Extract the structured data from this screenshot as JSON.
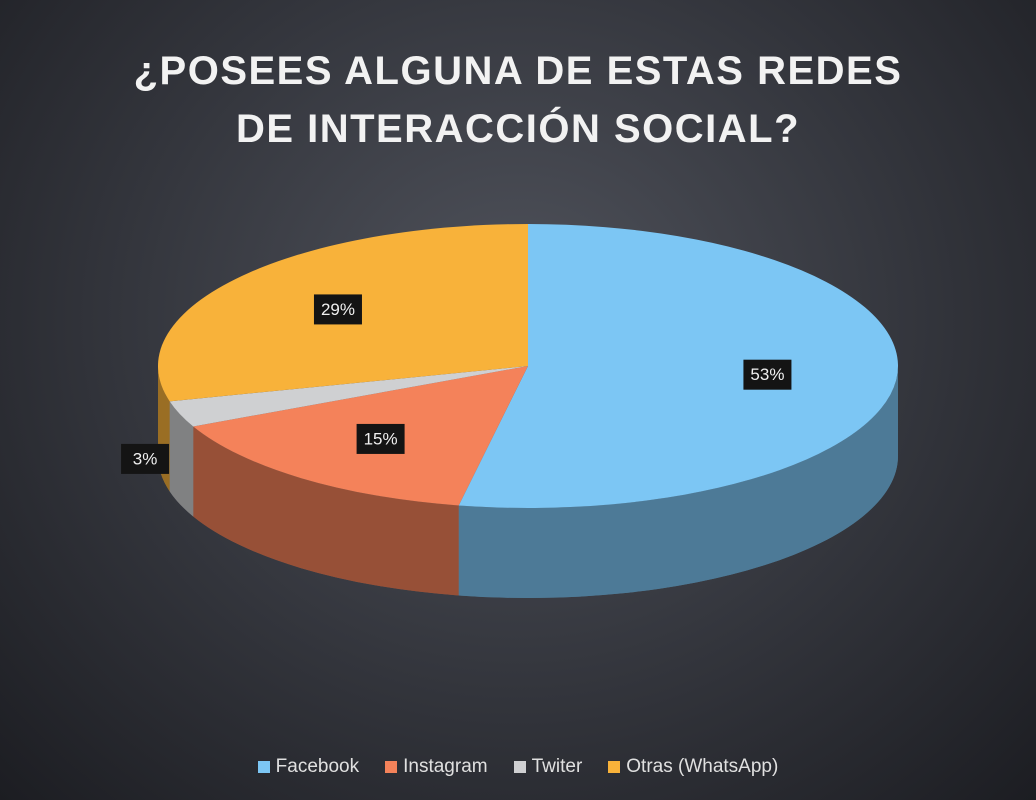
{
  "chart_data": {
    "type": "pie",
    "title": "¿POSEES ALGUNA DE ESTAS REDES DE INTERACCIÓN SOCIAL?",
    "categories": [
      "Facebook",
      "Instagram",
      "Twiter",
      "Otras (WhatsApp)"
    ],
    "values": [
      53,
      15,
      3,
      29
    ],
    "value_labels": [
      "53%",
      "15%",
      "3%",
      "29%"
    ],
    "colors": [
      "#7cc6f4",
      "#f4825a",
      "#cfd0d2",
      "#f8b23a"
    ],
    "legend": "bottom"
  }
}
